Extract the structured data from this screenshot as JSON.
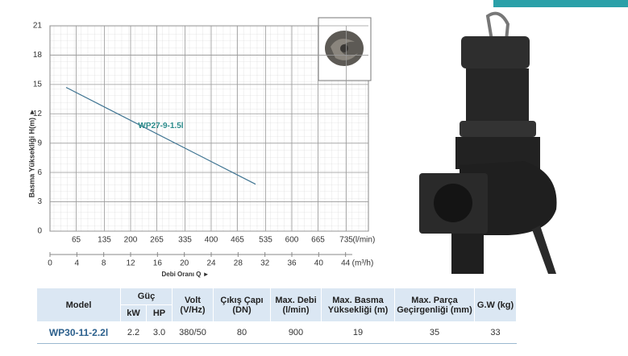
{
  "chart_data": {
    "type": "line",
    "y_label": "Basma Yüksekliği H(m) ►",
    "x_label": "Debi Oranı Q ►",
    "x_unit": "(l/min)",
    "x2_unit": "(m³/h)",
    "x": [
      40,
      510
    ],
    "series": [
      {
        "name": "WP27-9-1.5l",
        "color": "#3d7391",
        "values": [
          14.7,
          4.8
        ]
      }
    ],
    "xlim": [
      0,
      790
    ],
    "xticks": [
      65,
      135,
      200,
      265,
      335,
      400,
      465,
      535,
      600,
      665,
      735
    ],
    "x2lim": [
      0,
      47.4
    ],
    "x2ticks": [
      0,
      4,
      8,
      12,
      16,
      20,
      24,
      28,
      32,
      36,
      40,
      44
    ],
    "ylim": [
      0,
      21
    ],
    "yticks": [
      0,
      3,
      6,
      9,
      12,
      15,
      18,
      21
    ],
    "grid": true
  },
  "table": {
    "headers": [
      "Model",
      "Güç",
      "Volt (V/Hz)",
      "Çıkış Çapı (DN)",
      "Max. Debi (l/min)",
      "Max. Basma Yüksekliği (m)",
      "Max. Parça Geçirgenliği (mm)",
      "G.W (kg)"
    ],
    "subheaders": [
      "kW",
      "HP"
    ],
    "rows": [
      [
        "WP30-11-2.2l",
        "2.2",
        "3.0",
        "380/50",
        "80",
        "900",
        "19",
        "35",
        "33"
      ]
    ]
  }
}
